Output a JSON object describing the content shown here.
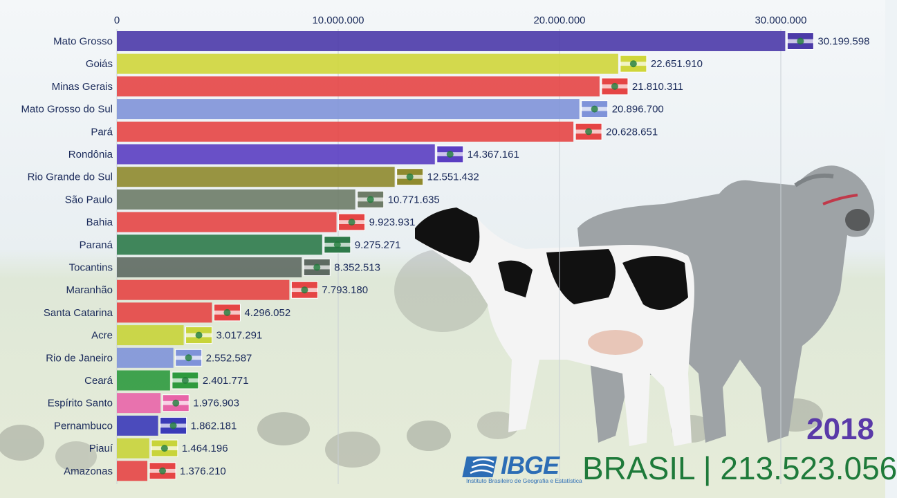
{
  "year": "2018",
  "footer": {
    "logo_text": "IBGE",
    "logo_subtitle": "Instituto Brasileiro de Geografia e Estatística",
    "total_text": "BRASIL | 213.523.056"
  },
  "colors": {
    "text": "#1a2a5a",
    "year": "#5a3aa8",
    "total": "#1e7a3a",
    "ibge_blue": "#2c6db5"
  },
  "chart_data": {
    "type": "bar",
    "orientation": "horizontal",
    "xlim": [
      0,
      32000000
    ],
    "xticks": [
      0,
      10000000,
      20000000,
      30000000
    ],
    "xtick_labels": [
      "0",
      "10.000.000",
      "20.000.000",
      "30.000.000"
    ],
    "grid": true,
    "bars": [
      {
        "name": "Mato Grosso",
        "value": 30199598,
        "label": "30.199.598",
        "color": "#4b3aa8",
        "flag": "mato-grosso-flag-icon"
      },
      {
        "name": "Goiás",
        "value": 22651910,
        "label": "22.651.910",
        "color": "#cfd63a",
        "flag": "goias-flag-icon"
      },
      {
        "name": "Minas Gerais",
        "value": 21810311,
        "label": "21.810.311",
        "color": "#e54545",
        "flag": "minas-gerais-flag-icon"
      },
      {
        "name": "Mato Grosso do Sul",
        "value": 20896700,
        "label": "20.896.700",
        "color": "#7f93d9",
        "flag": "mato-grosso-do-sul-flag-icon"
      },
      {
        "name": "Pará",
        "value": 20628651,
        "label": "20.628.651",
        "color": "#e54545",
        "flag": "para-flag-icon"
      },
      {
        "name": "Rondônia",
        "value": 14367161,
        "label": "14.367.161",
        "color": "#5a3ec2",
        "flag": "rondonia-flag-icon"
      },
      {
        "name": "Rio Grande do Sul",
        "value": 12551432,
        "label": "12.551.432",
        "color": "#8f8a2e",
        "flag": "rio-grande-do-sul-flag-icon"
      },
      {
        "name": "São Paulo",
        "value": 10771635,
        "label": "10.771.635",
        "color": "#6e7c68",
        "flag": "sao-paulo-flag-icon"
      },
      {
        "name": "Bahia",
        "value": 9923931,
        "label": "9.923.931",
        "color": "#e54545",
        "flag": "bahia-flag-icon"
      },
      {
        "name": "Paraná",
        "value": 9275271,
        "label": "9.275.271",
        "color": "#2e7a4a",
        "flag": "parana-flag-icon"
      },
      {
        "name": "Tocantins",
        "value": 8352513,
        "label": "8.352.513",
        "color": "#5e6a62",
        "flag": "tocantins-flag-icon"
      },
      {
        "name": "Maranhão",
        "value": 7793180,
        "label": "7.793.180",
        "color": "#e54545",
        "flag": "maranhao-flag-icon"
      },
      {
        "name": "Santa Catarina",
        "value": 4296052,
        "label": "4.296.052",
        "color": "#e54545",
        "flag": "santa-catarina-flag-icon"
      },
      {
        "name": "Acre",
        "value": 3017291,
        "label": "3.017.291",
        "color": "#c8d43a",
        "flag": "acre-flag-icon"
      },
      {
        "name": "Rio de Janeiro",
        "value": 2552587,
        "label": "2.552.587",
        "color": "#7f93d9",
        "flag": "rio-de-janeiro-flag-icon"
      },
      {
        "name": "Ceará",
        "value": 2401771,
        "label": "2.401.771",
        "color": "#2e9a3e",
        "flag": "ceara-flag-icon"
      },
      {
        "name": "Espírito Santo",
        "value": 1976903,
        "label": "1.976.903",
        "color": "#e865a8",
        "flag": "espirito-santo-flag-icon"
      },
      {
        "name": "Pernambuco",
        "value": 1862181,
        "label": "1.862.181",
        "color": "#3a3ab8",
        "flag": "pernambuco-flag-icon"
      },
      {
        "name": "Piauí",
        "value": 1464196,
        "label": "1.464.196",
        "color": "#c8d43a",
        "flag": "piaui-flag-icon"
      },
      {
        "name": "Amazonas",
        "value": 1376210,
        "label": "1.376.210",
        "color": "#e54545",
        "flag": "amazonas-flag-icon"
      }
    ]
  }
}
